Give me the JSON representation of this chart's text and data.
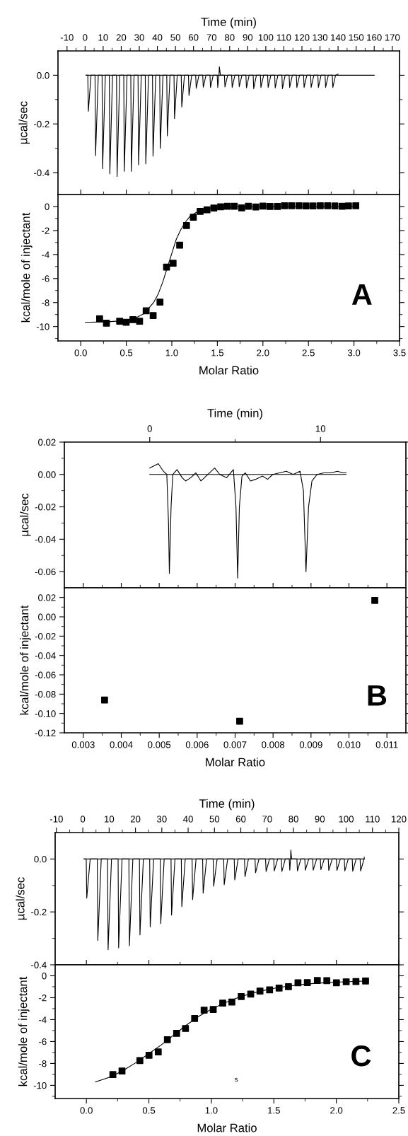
{
  "chart_data": [
    {
      "type": "line",
      "xlabel": "Time (min)",
      "ylabel": "µcal/sec",
      "xlim": [
        -15,
        174
      ],
      "ylim": [
        -0.49,
        0.1
      ],
      "xticks": [
        -10,
        0,
        10,
        20,
        30,
        40,
        50,
        60,
        70,
        80,
        90,
        100,
        110,
        120,
        130,
        140,
        150,
        160,
        170,
        {
          "value": -5,
          "label": null
        },
        {
          "value": 5,
          "label": null
        },
        {
          "value": 15,
          "label": null
        },
        {
          "value": 25,
          "label": null
        },
        {
          "value": 35,
          "label": null
        },
        {
          "value": 45,
          "label": null
        },
        {
          "value": 55,
          "label": null
        },
        {
          "value": 65,
          "label": null
        },
        {
          "value": 75,
          "label": null
        },
        {
          "value": 85,
          "label": null
        },
        {
          "value": 95,
          "label": null
        },
        {
          "value": 105,
          "label": null
        },
        {
          "value": 115,
          "label": null
        },
        {
          "value": 125,
          "label": null
        },
        {
          "value": 135,
          "label": null
        },
        {
          "value": 145,
          "label": null
        },
        {
          "value": 155,
          "label": null
        },
        {
          "value": 165,
          "label": null
        }
      ],
      "yticks": [
        {
          "value": 0,
          "label": "0.0"
        },
        {
          "value": -0.2,
          "label": "-0.2"
        },
        {
          "value": -0.4,
          "label": "-0.4"
        },
        {
          "value": -0.1,
          "label": null
        },
        {
          "value": -0.3,
          "label": null
        }
      ],
      "series": [
        {
          "color": "#000000",
          "x": [
            0.5,
            1.5,
            1.8,
            3.3,
            5.5,
            5.8,
            7.3,
            9.4,
            9.7,
            11.2,
            13.4,
            13.7,
            15.2,
            17.4,
            17.7,
            19.2,
            21.4,
            21.7,
            23.2,
            25.3,
            25.6,
            27.1,
            29.3,
            29.6,
            31.1,
            33.3,
            33.6,
            35.1,
            37.3,
            37.6,
            39.1,
            41.3,
            41.6,
            43.1,
            45.2,
            45.5,
            47.0,
            49.2,
            49.5,
            51.0,
            53.2,
            53.5,
            55.0,
            57.2,
            57.5,
            59.0,
            61.2,
            61.5,
            63.0,
            65.1,
            65.4,
            66.9,
            69.1,
            69.4,
            70.9,
            73.1,
            73.4,
            74.1,
            74.3,
            74.9,
            77.1,
            77.4,
            78.9,
            81.1,
            81.4,
            82.9,
            85.0,
            85.3,
            86.8,
            89.0,
            89.3,
            90.8,
            93.0,
            93.3,
            94.8,
            97.0,
            97.3,
            98.8,
            101.0,
            101.3,
            102.8,
            104.9,
            105.2,
            106.7,
            108.9,
            109.2,
            110.7,
            112.9,
            113.2,
            114.7,
            116.9,
            117.2,
            118.7,
            120.9,
            121.2,
            122.7,
            124.8,
            125.1,
            126.6,
            128.8,
            129.1,
            130.6,
            132.8,
            133.1,
            134.6,
            136.8,
            137.1,
            138.6,
            140.0
          ],
          "values": [
            0,
            0,
            -0.148,
            0,
            0,
            -0.33,
            0,
            0,
            -0.384,
            0,
            0,
            -0.405,
            0,
            0,
            -0.416,
            0,
            0,
            -0.395,
            0,
            0,
            -0.395,
            0,
            0,
            -0.368,
            0,
            0,
            -0.364,
            0,
            0,
            -0.332,
            0,
            0,
            -0.3,
            0,
            0,
            -0.249,
            0,
            0,
            -0.178,
            0,
            0,
            -0.13,
            0,
            0,
            -0.083,
            0,
            0,
            -0.054,
            0,
            0,
            -0.049,
            0,
            0,
            -0.05,
            0,
            0,
            -0.05,
            0,
            0.035,
            0,
            0,
            -0.048,
            0,
            0,
            -0.05,
            0,
            0,
            -0.047,
            0,
            0,
            -0.052,
            0,
            0,
            -0.055,
            0,
            0,
            -0.05,
            0,
            0,
            -0.05,
            0,
            0,
            -0.052,
            0,
            0,
            -0.055,
            0,
            0,
            -0.05,
            0,
            0,
            -0.05,
            0,
            0,
            -0.05,
            0,
            0,
            -0.05,
            0,
            0,
            -0.05,
            0,
            0,
            -0.05,
            0,
            0,
            -0.05,
            0,
            0.005
          ]
        },
        {
          "color": "#000000",
          "x": [
            0.5,
            160
          ],
          "values": [
            0,
            0
          ]
        }
      ]
    },
    {
      "type": "scatter",
      "marker": "square",
      "xlabel": "Molar Ratio",
      "ylabel": "kcal/mole of injectant",
      "annotations": [
        "A"
      ],
      "xlim": [
        -0.25,
        3.5
      ],
      "ylim": [
        -11.2,
        1
      ],
      "xticks": [
        {
          "value": 0,
          "label": "0.0"
        },
        {
          "value": 0.5,
          "label": "0.5"
        },
        {
          "value": 1,
          "label": "1.0"
        },
        {
          "value": 1.5,
          "label": "1.5"
        },
        {
          "value": 2,
          "label": "2.0"
        },
        {
          "value": 2.5,
          "label": "2.5"
        },
        {
          "value": 3,
          "label": "3.0"
        },
        {
          "value": 3.5,
          "label": "3.5"
        },
        {
          "value": 0.25,
          "label": null
        },
        {
          "value": 0.75,
          "label": null
        },
        {
          "value": 1.25,
          "label": null
        },
        {
          "value": 1.75,
          "label": null
        },
        {
          "value": 2.25,
          "label": null
        },
        {
          "value": 2.75,
          "label": null
        },
        {
          "value": 3.25,
          "label": null
        }
      ],
      "yticks": [
        0,
        -2,
        -4,
        -6,
        -8,
        -10,
        {
          "value": -1,
          "label": null
        },
        {
          "value": -3,
          "label": null
        },
        {
          "value": -5,
          "label": null
        },
        {
          "value": -7,
          "label": null
        },
        {
          "value": -9,
          "label": null
        },
        {
          "value": -11,
          "label": null
        }
      ],
      "series": [
        {
          "type": "scatter",
          "color": "#000000",
          "x": [
            0.207,
            0.282,
            0.427,
            0.499,
            0.573,
            0.646,
            0.718,
            0.795,
            0.87,
            0.942,
            1.014,
            1.086,
            1.161,
            1.236,
            1.311,
            1.386,
            1.461,
            1.536,
            1.611,
            1.686,
            1.767,
            1.841,
            1.922,
            2.0,
            2.078,
            2.159,
            2.236,
            2.314,
            2.395,
            2.473,
            2.55,
            2.63,
            2.71,
            2.79,
            2.87,
            2.94,
            3.02
          ],
          "values": [
            -9.35,
            -9.72,
            -9.56,
            -9.65,
            -9.43,
            -9.56,
            -8.69,
            -9.08,
            -7.97,
            -5.05,
            -4.73,
            -3.22,
            -1.59,
            -0.89,
            -0.41,
            -0.28,
            -0.13,
            -0.02,
            0.02,
            0.02,
            -0.11,
            0.02,
            -0.04,
            0.04,
            0,
            0,
            0.07,
            0.07,
            0.07,
            0.05,
            0.05,
            0.07,
            0.07,
            0.05,
            0.02,
            0.05,
            0.07
          ]
        },
        {
          "type": "line",
          "marker": "none",
          "color": "#000000",
          "x": [
            0.05,
            0.3,
            0.5,
            0.6,
            0.7,
            0.8,
            0.85,
            0.9,
            0.95,
            1.0,
            1.05,
            1.1,
            1.15,
            1.2,
            1.3,
            1.4,
            1.5,
            1.7,
            2.0,
            2.5,
            3.02
          ],
          "values": [
            -9.65,
            -9.6,
            -9.5,
            -9.3,
            -8.9,
            -8.0,
            -7.3,
            -6.3,
            -5.1,
            -3.9,
            -2.7,
            -1.9,
            -1.3,
            -0.8,
            -0.35,
            -0.15,
            -0.07,
            -0.02,
            0,
            0,
            0
          ]
        }
      ]
    },
    {
      "type": "line",
      "xlabel": "Time (min)",
      "ylabel": "µcal/sec",
      "xlim": [
        -5,
        15
      ],
      "ylim": [
        -0.07,
        0.02
      ],
      "xticks": [
        0,
        10,
        {
          "value": 5,
          "label": null
        }
      ],
      "yticks": [
        {
          "value": 0.02,
          "label": "0.02"
        },
        {
          "value": 0,
          "label": "0.00"
        },
        {
          "value": -0.02,
          "label": "-0.02"
        },
        {
          "value": -0.04,
          "label": "-0.04"
        },
        {
          "value": -0.06,
          "label": "-0.06"
        },
        {
          "value": 0.01,
          "label": null
        },
        {
          "value": -0.01,
          "label": null
        },
        {
          "value": -0.03,
          "label": null
        },
        {
          "value": -0.05,
          "label": null
        }
      ],
      "series": [
        {
          "color": "#000000",
          "x": [
            0,
            0.2,
            0.5,
            0.8,
            1.0,
            1.1,
            1.15,
            1.25,
            1.35,
            1.6,
            1.9,
            2.1,
            2.4,
            2.7,
            3.0,
            3.3,
            3.8,
            4.1,
            4.5,
            4.9,
            5.05,
            5.15,
            5.25,
            5.4,
            5.6,
            5.9,
            6.2,
            6.6,
            6.9,
            7.2,
            7.6,
            8.0,
            8.4,
            8.8,
            9.0,
            9.15,
            9.3,
            9.5,
            9.8,
            10.2,
            10.6,
            11.0,
            11.3,
            11.5
          ],
          "values": [
            0.004,
            0.005,
            0.0067,
            0.002,
            0.0,
            -0.03,
            -0.061,
            -0.02,
            0.0,
            0.003,
            -0.002,
            -0.004,
            -0.002,
            0.001,
            -0.004,
            -0.001,
            0.004,
            0.0,
            -0.002,
            0.003,
            -0.02,
            -0.064,
            -0.02,
            -0.001,
            0.001,
            -0.004,
            -0.003,
            -0.001,
            -0.003,
            0.0,
            0.001,
            0.002,
            0.0,
            0.002,
            -0.01,
            -0.06,
            -0.02,
            -0.004,
            0.0,
            0.001,
            0.001,
            0.002,
            0.001,
            0.001
          ]
        },
        {
          "color": "#000000",
          "x": [
            0,
            11.5
          ],
          "values": [
            0,
            0
          ]
        }
      ]
    },
    {
      "type": "scatter",
      "marker": "square",
      "xlabel": "Molar Ratio",
      "ylabel": "kcal/mole of injectant",
      "annotations": [
        "B"
      ],
      "xlim": [
        0.0025,
        0.0115
      ],
      "ylim": [
        -0.12,
        0.03
      ],
      "xticks": [
        0.003,
        0.004,
        0.005,
        0.006,
        0.007,
        0.008,
        0.009,
        {
          "value": 0.01,
          "label": "0.010"
        },
        0.011,
        {
          "value": 0.0035,
          "label": null
        },
        {
          "value": 0.0045,
          "label": null
        },
        {
          "value": 0.0055,
          "label": null
        },
        {
          "value": 0.0065,
          "label": null
        },
        {
          "value": 0.0075,
          "label": null
        },
        {
          "value": 0.0085,
          "label": null
        },
        {
          "value": 0.0095,
          "label": null
        },
        {
          "value": 0.0105,
          "label": null
        }
      ],
      "yticks": [
        {
          "value": 0.02,
          "label": "0.02"
        },
        {
          "value": 0,
          "label": "0.00"
        },
        {
          "value": -0.02,
          "label": "-0.02"
        },
        {
          "value": -0.04,
          "label": "-0.04"
        },
        {
          "value": -0.06,
          "label": "-0.06"
        },
        {
          "value": -0.08,
          "label": "-0.08"
        },
        {
          "value": -0.1,
          "label": "-0.10"
        },
        {
          "value": -0.12,
          "label": "-0.12"
        },
        {
          "value": 0.01,
          "label": null
        },
        {
          "value": -0.01,
          "label": null
        },
        {
          "value": -0.03,
          "label": null
        },
        {
          "value": -0.05,
          "label": null
        },
        {
          "value": -0.07,
          "label": null
        },
        {
          "value": -0.09,
          "label": null
        },
        {
          "value": -0.11,
          "label": null
        }
      ],
      "series": [
        {
          "type": "scatter",
          "color": "#000000",
          "x": [
            0.00356,
            0.00712,
            0.01068
          ],
          "values": [
            -0.086,
            -0.108,
            0.017
          ]
        }
      ]
    },
    {
      "type": "line",
      "xlabel": "Time (min)",
      "ylabel": "µcal/sec",
      "xlim": [
        -10.5,
        120
      ],
      "ylim": [
        -0.4,
        0.1
      ],
      "xticks": [
        -10,
        0,
        10,
        20,
        30,
        40,
        50,
        60,
        70,
        80,
        90,
        100,
        110,
        120,
        {
          "value": -5,
          "label": null
        },
        {
          "value": 5,
          "label": null
        },
        {
          "value": 15,
          "label": null
        },
        {
          "value": 25,
          "label": null
        },
        {
          "value": 35,
          "label": null
        },
        {
          "value": 45,
          "label": null
        },
        {
          "value": 55,
          "label": null
        },
        {
          "value": 65,
          "label": null
        },
        {
          "value": 75,
          "label": null
        },
        {
          "value": 85,
          "label": null
        },
        {
          "value": 95,
          "label": null
        },
        {
          "value": 105,
          "label": null
        },
        {
          "value": 115,
          "label": null
        }
      ],
      "yticks": [
        {
          "value": 0,
          "label": "0.0"
        },
        {
          "value": -0.2,
          "label": "-0.2"
        },
        {
          "value": -0.4,
          "label": "-0.4"
        },
        {
          "value": -0.1,
          "label": null
        },
        {
          "value": -0.3,
          "label": null
        }
      ],
      "series": [
        {
          "color": "#000000",
          "x": [
            0.5,
            1.3,
            1.5,
            2.8,
            5.5,
            5.7,
            7.0,
            9.4,
            9.6,
            10.9,
            13.4,
            13.6,
            14.9,
            17.5,
            17.7,
            19.0,
            21.5,
            21.7,
            23.0,
            25.4,
            25.6,
            26.9,
            29.4,
            29.6,
            30.9,
            33.5,
            33.7,
            35.0,
            37.4,
            37.6,
            38.9,
            41.5,
            41.7,
            43.0,
            45.5,
            45.7,
            47.0,
            49.5,
            49.7,
            51.0,
            53.5,
            53.7,
            55.0,
            57.5,
            57.7,
            59.0,
            61.4,
            61.6,
            62.9,
            65.4,
            65.6,
            66.9,
            69.4,
            69.6,
            70.9,
            72.5,
            72.7,
            74.0,
            75.4,
            75.6,
            76.9,
            78.4,
            78.6,
            78.9,
            79.0,
            79.3,
            81.3,
            81.5,
            82.8,
            84.3,
            84.5,
            85.8,
            87.3,
            87.5,
            88.8,
            90.2,
            90.4,
            91.7,
            93.2,
            93.4,
            94.7,
            96.3,
            96.5,
            97.8,
            99.3,
            99.5,
            100.8,
            102.3,
            102.5,
            103.8,
            105.3,
            105.5,
            106.8,
            106.9
          ],
          "values": [
            0,
            0,
            -0.148,
            0,
            0,
            -0.308,
            0,
            0,
            -0.343,
            0,
            0,
            -0.336,
            0,
            0,
            -0.328,
            0,
            0,
            -0.287,
            0,
            0,
            -0.257,
            0,
            0,
            -0.244,
            0,
            0,
            -0.212,
            0,
            0,
            -0.18,
            0,
            0,
            -0.153,
            0,
            0,
            -0.129,
            0,
            0,
            -0.103,
            0,
            0,
            -0.097,
            0,
            0,
            -0.079,
            0,
            0,
            -0.067,
            0,
            0,
            -0.052,
            0,
            0,
            -0.047,
            0,
            0,
            -0.045,
            0,
            0,
            -0.047,
            0,
            0,
            -0.042,
            0,
            0.034,
            0,
            0,
            -0.045,
            0,
            0,
            -0.042,
            0,
            0,
            -0.042,
            0,
            0,
            -0.04,
            0,
            0,
            -0.043,
            0,
            0,
            -0.043,
            0,
            0,
            -0.045,
            0,
            0,
            -0.046,
            0,
            0,
            -0.045,
            0,
            0.007
          ]
        },
        {
          "color": "#000000",
          "x": [
            0.5,
            107
          ],
          "values": [
            0,
            0
          ]
        }
      ]
    },
    {
      "type": "scatter",
      "marker": "square",
      "xlabel": "Molar Ratio",
      "ylabel": "kcal/mole of injectant",
      "annotations": [
        "C",
        "s"
      ],
      "xlim": [
        -0.25,
        2.5
      ],
      "ylim": [
        -11.2,
        1
      ],
      "xticks": [
        {
          "value": 0,
          "label": "0.0"
        },
        {
          "value": 0.5,
          "label": "0.5"
        },
        {
          "value": 1,
          "label": "1.0"
        },
        {
          "value": 1.5,
          "label": "1.5"
        },
        {
          "value": 2,
          "label": "2.0"
        },
        {
          "value": 2.5,
          "label": "2.5"
        },
        {
          "value": 0.25,
          "label": null
        },
        {
          "value": 0.75,
          "label": null
        },
        {
          "value": 1.25,
          "label": null
        },
        {
          "value": 1.75,
          "label": null
        },
        {
          "value": 2.25,
          "label": null
        }
      ],
      "yticks": [
        0,
        -2,
        -4,
        -6,
        -8,
        -10,
        {
          "value": -1,
          "label": null
        },
        {
          "value": -3,
          "label": null
        },
        {
          "value": -5,
          "label": null
        },
        {
          "value": -7,
          "label": null
        },
        {
          "value": -9,
          "label": null
        },
        {
          "value": -11,
          "label": null
        }
      ],
      "series": [
        {
          "type": "scatter",
          "color": "#000000",
          "x": [
            0.212,
            0.285,
            0.428,
            0.501,
            0.575,
            0.648,
            0.722,
            0.793,
            0.866,
            0.942,
            1.015,
            1.091,
            1.164,
            1.239,
            1.315,
            1.389,
            1.466,
            1.542,
            1.617,
            1.693,
            1.768,
            1.848,
            1.924,
            2.001,
            2.079,
            2.157,
            2.234
          ],
          "values": [
            -9.02,
            -8.69,
            -7.74,
            -7.26,
            -6.95,
            -5.83,
            -5.26,
            -4.81,
            -3.9,
            -3.14,
            -3.07,
            -2.5,
            -2.4,
            -1.9,
            -1.67,
            -1.4,
            -1.29,
            -1.12,
            -1.0,
            -0.64,
            -0.62,
            -0.43,
            -0.45,
            -0.64,
            -0.55,
            -0.52,
            -0.48
          ]
        },
        {
          "type": "line",
          "marker": "none",
          "color": "#000000",
          "x": [
            0.073,
            0.2,
            0.3,
            0.4,
            0.5,
            0.6,
            0.7,
            0.8,
            0.9,
            1.0,
            1.1,
            1.2,
            1.3,
            1.4,
            1.5,
            1.6,
            1.7,
            1.8,
            1.9,
            2.0,
            2.1,
            2.234
          ],
          "values": [
            -9.69,
            -9.2,
            -8.6,
            -7.9,
            -7.1,
            -6.3,
            -5.4,
            -4.5,
            -3.7,
            -3.05,
            -2.5,
            -2.05,
            -1.68,
            -1.38,
            -1.15,
            -0.97,
            -0.83,
            -0.72,
            -0.64,
            -0.58,
            -0.53,
            -0.48
          ]
        }
      ]
    }
  ]
}
